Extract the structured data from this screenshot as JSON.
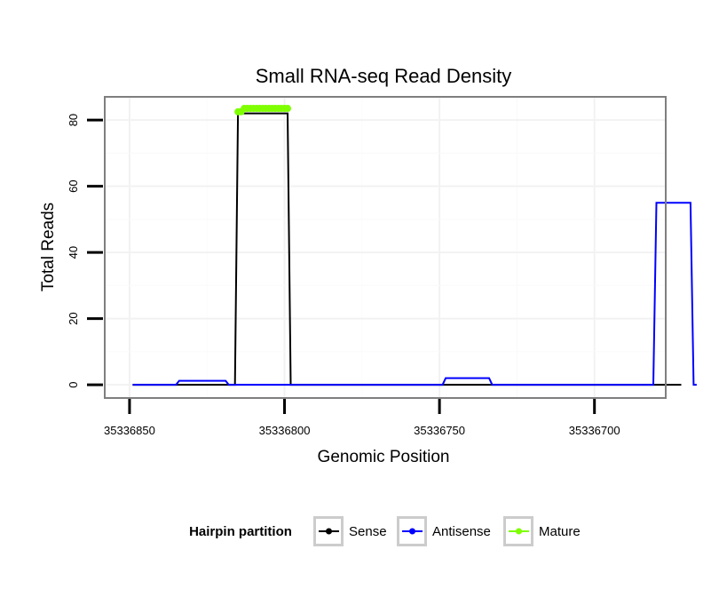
{
  "chart_data": {
    "type": "line",
    "title": "Small RNA-seq Read Density",
    "xlabel": "Genomic Position",
    "ylabel": "Total Reads",
    "x_reversed": true,
    "xlim": [
      35336858,
      35336677
    ],
    "ylim": [
      -4,
      87
    ],
    "x_ticks": [
      35336850,
      35336800,
      35336750,
      35336700
    ],
    "x_tick_labels": [
      "35336850",
      "35336800",
      "35336750",
      "35336700"
    ],
    "y_ticks": [
      0,
      20,
      40,
      60,
      80
    ],
    "y_tick_labels": [
      "0",
      "20",
      "40",
      "60",
      "80"
    ],
    "grid": true,
    "legend": {
      "title": "Hairpin partition",
      "position": "bottom",
      "entries": [
        {
          "label": "Sense",
          "color": "#000000"
        },
        {
          "label": "Antisense",
          "color": "#0000ff"
        },
        {
          "label": "Mature",
          "color": "#7fff00"
        }
      ]
    },
    "series": [
      {
        "name": "Sense",
        "color": "#000000",
        "x": [
          35336849,
          35336816,
          35336815,
          35336799,
          35336798,
          35336672
        ],
        "y": [
          0,
          0,
          82,
          82,
          0,
          0
        ]
      },
      {
        "name": "Antisense",
        "color": "#0000ff",
        "x": [
          35336849,
          35336835,
          35336834,
          35336819,
          35336818,
          35336749,
          35336748,
          35336734,
          35336733,
          35336681,
          35336680,
          35336669,
          35336668,
          35336667
        ],
        "y": [
          0,
          0,
          1.2,
          1.2,
          0,
          0,
          2,
          2,
          0,
          0,
          55,
          55,
          0,
          0
        ]
      },
      {
        "name": "Mature",
        "color": "#7fff00",
        "x": [
          35336815,
          35336814,
          35336813,
          35336812,
          35336811,
          35336810,
          35336809,
          35336808,
          35336807,
          35336806,
          35336805,
          35336804,
          35336803,
          35336802,
          35336801,
          35336800,
          35336799
        ],
        "y": [
          82.5,
          82.5,
          83.5,
          83.5,
          83.5,
          83.5,
          83.5,
          83.5,
          83.5,
          83.5,
          83.5,
          83.5,
          83.5,
          83.5,
          83.5,
          83.5,
          83.5
        ]
      }
    ]
  }
}
